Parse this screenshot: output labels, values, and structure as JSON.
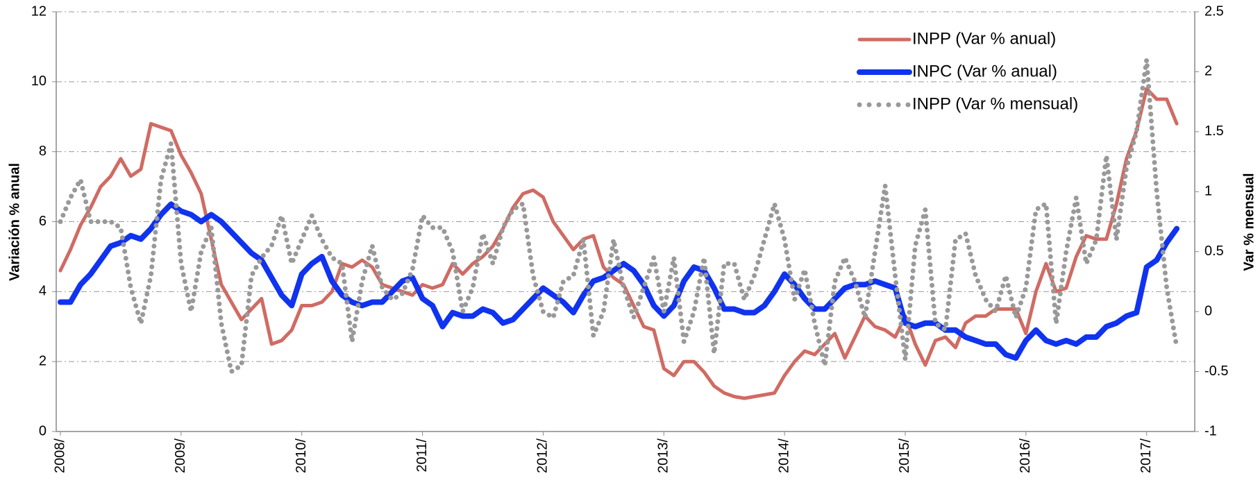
{
  "chart_data": {
    "type": "line",
    "y_label": "Variación % anual",
    "y2_label": "Var % mensual",
    "categories": [
      "2008/",
      null,
      null,
      null,
      null,
      null,
      null,
      null,
      null,
      null,
      null,
      null,
      "2009/",
      null,
      null,
      null,
      null,
      null,
      null,
      null,
      null,
      null,
      null,
      null,
      "2010/",
      null,
      null,
      null,
      null,
      null,
      null,
      null,
      null,
      null,
      null,
      null,
      "2011/",
      null,
      null,
      null,
      null,
      null,
      null,
      null,
      null,
      null,
      null,
      null,
      "2012/",
      null,
      null,
      null,
      null,
      null,
      null,
      null,
      null,
      null,
      null,
      null,
      "2013/",
      null,
      null,
      null,
      null,
      null,
      null,
      null,
      null,
      null,
      null,
      null,
      "2014/",
      null,
      null,
      null,
      null,
      null,
      null,
      null,
      null,
      null,
      null,
      null,
      "2015/",
      null,
      null,
      null,
      null,
      null,
      null,
      null,
      null,
      null,
      null,
      null,
      "2016/",
      null,
      null,
      null,
      null,
      null,
      null,
      null,
      null,
      null,
      null,
      null,
      "2017/",
      null,
      null,
      null
    ],
    "series": [
      {
        "name": "INPP (Var % anual)",
        "color": "#d06b63",
        "line_style": "solid",
        "width": 5,
        "values": [
          4.6,
          5.2,
          5.9,
          6.4,
          7.0,
          7.3,
          7.8,
          7.3,
          7.5,
          8.8,
          8.7,
          8.6,
          7.9,
          7.4,
          6.8,
          5.5,
          4.2,
          3.7,
          3.2,
          3.5,
          3.8,
          2.5,
          2.6,
          2.9,
          3.6,
          3.6,
          3.7,
          4.0,
          4.8,
          4.7,
          4.9,
          4.7,
          4.2,
          4.1,
          4.0,
          3.9,
          4.2,
          4.1,
          4.2,
          4.8,
          4.5,
          4.8,
          5.0,
          5.3,
          5.8,
          6.4,
          6.8,
          6.9,
          6.7,
          6.0,
          5.6,
          5.2,
          5.5,
          5.6,
          4.7,
          4.4,
          4.2,
          3.6,
          3.0,
          2.9,
          1.8,
          1.6,
          2.0,
          2.0,
          1.7,
          1.3,
          1.1,
          1.0,
          0.95,
          1.0,
          1.05,
          1.1,
          1.6,
          2.0,
          2.3,
          2.2,
          2.5,
          2.8,
          2.1,
          2.7,
          3.3,
          3.0,
          2.9,
          2.7,
          3.3,
          2.5,
          1.9,
          2.6,
          2.7,
          2.4,
          3.1,
          3.3,
          3.3,
          3.5,
          3.5,
          3.5,
          2.8,
          4.0,
          4.8,
          4.0,
          4.1,
          5.0,
          5.6,
          5.5,
          5.5,
          6.5,
          7.8,
          8.6,
          9.8,
          9.5,
          9.5,
          8.8
        ]
      },
      {
        "name": "INPC (Var % anual)",
        "color": "#1033f0",
        "line_style": "solid",
        "width": 8,
        "values": [
          3.7,
          3.7,
          4.2,
          4.5,
          4.9,
          5.3,
          5.4,
          5.6,
          5.5,
          5.8,
          6.2,
          6.5,
          6.3,
          6.2,
          6.0,
          6.2,
          6.0,
          5.7,
          5.4,
          5.1,
          4.9,
          4.4,
          3.9,
          3.6,
          4.5,
          4.8,
          5.0,
          4.3,
          3.9,
          3.7,
          3.6,
          3.7,
          3.7,
          4.0,
          4.3,
          4.4,
          3.8,
          3.6,
          3.0,
          3.4,
          3.3,
          3.3,
          3.5,
          3.4,
          3.1,
          3.2,
          3.5,
          3.8,
          4.1,
          3.9,
          3.7,
          3.4,
          3.9,
          4.3,
          4.4,
          4.6,
          4.8,
          4.6,
          4.2,
          3.6,
          3.3,
          3.6,
          4.3,
          4.7,
          4.6,
          4.1,
          3.5,
          3.5,
          3.4,
          3.4,
          3.6,
          4.0,
          4.5,
          4.2,
          3.8,
          3.5,
          3.5,
          3.8,
          4.1,
          4.2,
          4.2,
          4.3,
          4.2,
          4.1,
          3.1,
          3.0,
          3.1,
          3.1,
          2.9,
          2.9,
          2.7,
          2.6,
          2.5,
          2.5,
          2.2,
          2.1,
          2.6,
          2.9,
          2.6,
          2.5,
          2.6,
          2.5,
          2.7,
          2.7,
          3.0,
          3.1,
          3.3,
          3.4,
          4.7,
          4.9,
          5.4,
          5.8
        ]
      },
      {
        "name": "INPP (Var % mensual)",
        "color": "#999999",
        "line_style": "dotted",
        "width": 7,
        "axis": "y2",
        "values": [
          0.75,
          0.95,
          1.1,
          0.75,
          0.75,
          0.75,
          0.7,
          0.2,
          -0.1,
          0.3,
          1.1,
          1.4,
          0.4,
          0.0,
          0.5,
          0.7,
          -0.1,
          -0.5,
          -0.45,
          0.3,
          0.45,
          0.55,
          0.8,
          0.4,
          0.6,
          0.8,
          0.6,
          0.45,
          0.4,
          -0.25,
          0.25,
          0.55,
          0.2,
          0.1,
          0.15,
          0.35,
          0.8,
          0.7,
          0.7,
          0.5,
          0.0,
          0.2,
          0.65,
          0.4,
          0.7,
          0.85,
          0.9,
          0.3,
          0.0,
          -0.05,
          0.25,
          0.3,
          0.6,
          -0.2,
          0.0,
          0.6,
          0.2,
          -0.05,
          0.2,
          0.45,
          0.0,
          0.45,
          -0.25,
          0.0,
          0.45,
          -0.35,
          0.4,
          0.4,
          0.1,
          0.3,
          0.6,
          0.9,
          0.6,
          0.1,
          0.35,
          -0.1,
          -0.45,
          0.25,
          0.45,
          0.25,
          -0.05,
          0.5,
          1.05,
          0.3,
          -0.4,
          0.55,
          0.85,
          -0.1,
          -0.15,
          0.6,
          0.65,
          0.3,
          0.1,
          0.0,
          0.3,
          -0.05,
          0.2,
          0.85,
          0.9,
          -0.1,
          0.5,
          0.95,
          0.4,
          0.6,
          1.3,
          0.6,
          1.2,
          1.5,
          2.1,
          1.0,
          0.2,
          -0.3
        ]
      }
    ],
    "ylim": [
      0,
      12
    ],
    "yticks": [
      0,
      2,
      4,
      6,
      8,
      10,
      12
    ],
    "y2lim": [
      -1,
      2.5
    ],
    "y2ticks": [
      -1,
      -0.5,
      0,
      0.5,
      1,
      1.5,
      2,
      2.5
    ],
    "grid": true,
    "legend": "upper right"
  }
}
